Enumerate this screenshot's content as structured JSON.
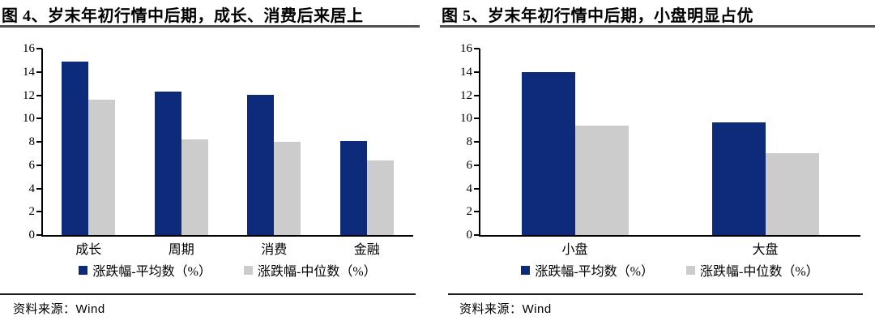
{
  "chart_data": [
    {
      "type": "bar",
      "title": "图 4、岁末年初行情中后期，成长、消费后来居上",
      "categories": [
        "成长",
        "周期",
        "消费",
        "金融"
      ],
      "series": [
        {
          "name": "涨跌幅-平均数（%）",
          "color": "#0e2a7b",
          "values": [
            14.9,
            12.3,
            12.0,
            8.1
          ]
        },
        {
          "name": "涨跌幅-中位数（%）",
          "color": "#cccccc",
          "values": [
            11.6,
            8.2,
            8.0,
            6.4
          ]
        }
      ],
      "ylim": [
        0,
        16
      ],
      "ytick_step": 2,
      "grid": false,
      "legend_position": "bottom",
      "source": "资料来源：Wind"
    },
    {
      "type": "bar",
      "title": "图 5、岁末年初行情中后期，小盘明显占优",
      "categories": [
        "小盘",
        "大盘"
      ],
      "series": [
        {
          "name": "涨跌幅-平均数（%）",
          "color": "#0e2a7b",
          "values": [
            14.0,
            9.7
          ]
        },
        {
          "name": "涨跌幅-中位数（%）",
          "color": "#cccccc",
          "values": [
            9.4,
            7.0
          ]
        }
      ],
      "ylim": [
        0,
        16
      ],
      "ytick_step": 2,
      "grid": false,
      "legend_position": "bottom",
      "source": "资料来源：Wind"
    }
  ]
}
